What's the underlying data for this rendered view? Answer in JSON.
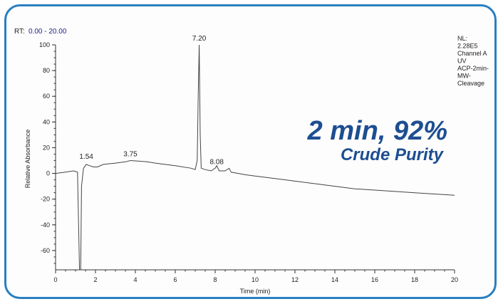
{
  "range_label_prefix": "RT:",
  "range_label_value": "0.00 - 20.00",
  "info_lines": [
    "NL:",
    "2.28E5",
    "Channel A",
    "UV",
    "ACP-2min-",
    "MW-",
    "Cleavage"
  ],
  "callout_line1": "2 min, 92%",
  "callout_line2": "Crude Purity",
  "chart_data": {
    "type": "line",
    "title": "",
    "xlabel": "Time (min)",
    "ylabel": "Relative Absorbance",
    "xlim": [
      0,
      20
    ],
    "ylim": [
      -75,
      100
    ],
    "x_ticks": [
      0,
      2,
      4,
      6,
      8,
      10,
      12,
      14,
      16,
      18,
      20
    ],
    "y_ticks": [
      100,
      80,
      60,
      40,
      20,
      0,
      -20,
      -40,
      -60
    ],
    "x_tick_labels": [
      "0",
      "2",
      "4",
      "6",
      "8",
      "10",
      "12",
      "14",
      "16",
      "18",
      "20"
    ],
    "y_tick_labels": [
      "100",
      "80",
      "60",
      "40",
      "20",
      "0",
      "-20",
      "-40",
      "-60"
    ],
    "peak_labels": [
      {
        "x": 1.54,
        "y": 8,
        "label": "1.54"
      },
      {
        "x": 3.75,
        "y": 10,
        "label": "3.75"
      },
      {
        "x": 7.2,
        "y": 100,
        "label": "7.20"
      },
      {
        "x": 8.08,
        "y": 4,
        "label": "8.08"
      }
    ],
    "series": [
      {
        "points": [
          [
            0,
            0
          ],
          [
            0.5,
            1
          ],
          [
            0.9,
            2
          ],
          [
            1.1,
            1
          ],
          [
            1.2,
            -75
          ],
          [
            1.26,
            -75
          ],
          [
            1.3,
            -10
          ],
          [
            1.4,
            4
          ],
          [
            1.54,
            7
          ],
          [
            1.7,
            6
          ],
          [
            1.9,
            5
          ],
          [
            2.1,
            5
          ],
          [
            2.4,
            7
          ],
          [
            3.0,
            8
          ],
          [
            3.5,
            9
          ],
          [
            3.75,
            10
          ],
          [
            4.2,
            9.5
          ],
          [
            4.6,
            9
          ],
          [
            5.0,
            8
          ],
          [
            6.0,
            6
          ],
          [
            6.8,
            4
          ],
          [
            7.0,
            3
          ],
          [
            7.1,
            10
          ],
          [
            7.15,
            60
          ],
          [
            7.2,
            100
          ],
          [
            7.25,
            30
          ],
          [
            7.3,
            4
          ],
          [
            7.5,
            3
          ],
          [
            7.8,
            2
          ],
          [
            8.0,
            4
          ],
          [
            8.08,
            6
          ],
          [
            8.2,
            2
          ],
          [
            8.5,
            2
          ],
          [
            8.7,
            4
          ],
          [
            8.8,
            1
          ],
          [
            9.5,
            -1
          ],
          [
            10,
            -2
          ],
          [
            11,
            -4
          ],
          [
            12,
            -6
          ],
          [
            13,
            -8
          ],
          [
            14,
            -10
          ],
          [
            15,
            -12
          ],
          [
            16,
            -13
          ],
          [
            17,
            -14
          ],
          [
            18,
            -15
          ],
          [
            19,
            -16
          ],
          [
            20,
            -17
          ]
        ]
      }
    ]
  }
}
